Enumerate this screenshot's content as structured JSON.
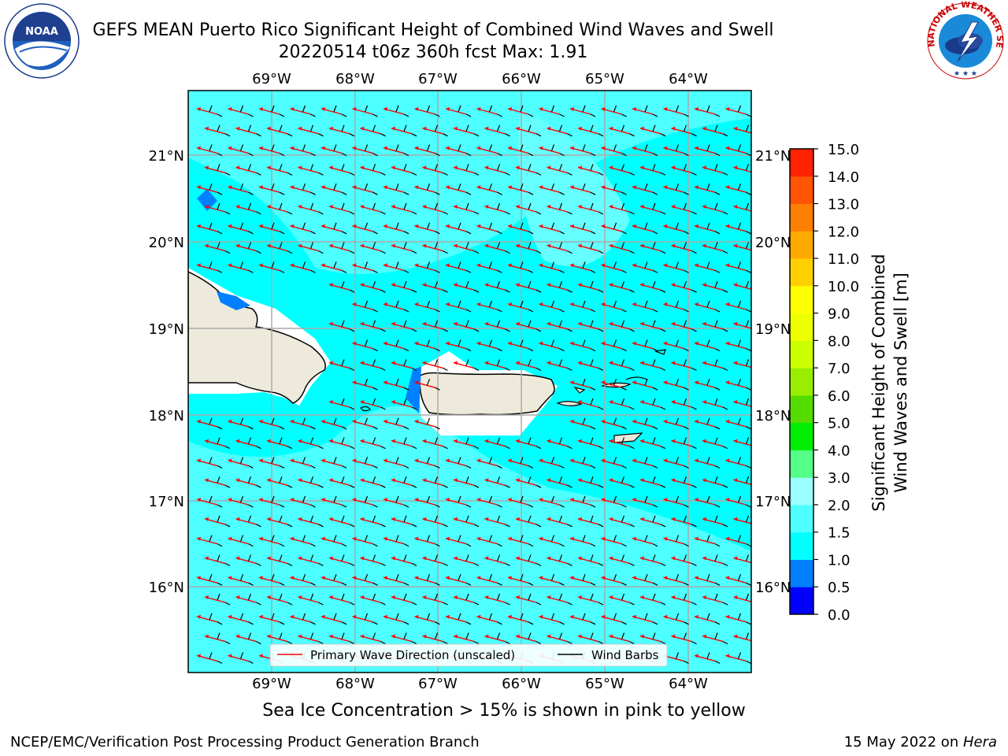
{
  "title": {
    "line1": "GEFS MEAN Puerto Rico Significant Height of Combined Wind Waves and Swell",
    "line2": "20220514 t06z 360h fcst   Max: 1.91"
  },
  "logos": {
    "left": "noaa-logo",
    "left_text": "NOAA",
    "left_ring_top": "NATIONAL OCEANIC AND ATMOSPHERIC ADMINISTRATION",
    "left_ring_bottom": "U.S. DEPARTMENT OF COMMERCE",
    "right": "nws-logo",
    "right_ring": "NATIONAL WEATHER SERVICE"
  },
  "map": {
    "lon_labels": [
      "69°W",
      "68°W",
      "67°W",
      "66°W",
      "65°W",
      "64°W"
    ],
    "lat_labels": [
      "21°N",
      "20°N",
      "19°N",
      "18°N",
      "17°N",
      "16°N"
    ],
    "legend": {
      "wave_label": "Primary Wave Direction (unscaled)",
      "barb_label": "Wind Barbs"
    },
    "colors": {
      "ocean_low": "#00ffff",
      "ocean_mid": "#4dffff",
      "land": "#eeeadb",
      "arrow": "#ff0000",
      "barb": "#000000"
    }
  },
  "colorbar": {
    "label_line1": "Significant Height of Combined",
    "label_line2": "Wind Waves and Swell [m]",
    "ticks": [
      "0.0",
      "0.5",
      "1.0",
      "1.5",
      "2.0",
      "3.0",
      "4.0",
      "5.0",
      "6.0",
      "7.0",
      "8.0",
      "9.0",
      "10.0",
      "11.0",
      "12.0",
      "13.0",
      "14.0",
      "15.0"
    ],
    "colors": [
      "#0000ff",
      "#0080ff",
      "#00ffff",
      "#4dffff",
      "#9affff",
      "#55ff88",
      "#00ee00",
      "#55dd00",
      "#99ee00",
      "#ccff00",
      "#eeff00",
      "#ffff00",
      "#ffd000",
      "#ffaa00",
      "#ff8000",
      "#ff5500",
      "#ff2200"
    ]
  },
  "caption": "Sea Ice Concentration > 15% is shown in pink to yellow",
  "footer": {
    "left": "NCEP/EMC/Verification Post Processing Product Generation Branch",
    "right_prefix": "15 May 2022 on ",
    "right_host": "Hera"
  }
}
